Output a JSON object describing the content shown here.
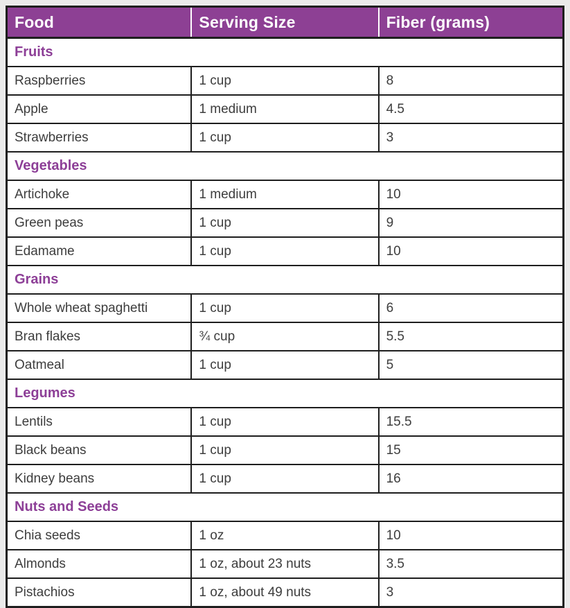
{
  "colors": {
    "page_bg": "#eaeaea",
    "table_bg": "#ffffff",
    "border": "#1e1e1e",
    "header_bg": "#8d4094",
    "header_text": "#ffffff",
    "category_text": "#8d3f97",
    "body_text": "#3d3d3d"
  },
  "table": {
    "columns": [
      "Food",
      "Serving Size",
      "Fiber (grams)"
    ],
    "sections": [
      {
        "category": "Fruits",
        "rows": [
          [
            "Raspberries",
            "1 cup",
            "8"
          ],
          [
            "Apple",
            "1 medium",
            "4.5"
          ],
          [
            "Strawberries",
            "1 cup",
            "3"
          ]
        ]
      },
      {
        "category": "Vegetables",
        "rows": [
          [
            "Artichoke",
            "1 medium",
            "10"
          ],
          [
            "Green peas",
            "1 cup",
            "9"
          ],
          [
            "Edamame",
            "1 cup",
            "10"
          ]
        ]
      },
      {
        "category": "Grains",
        "rows": [
          [
            "Whole wheat spaghetti",
            "1 cup",
            "6"
          ],
          [
            "Bran flakes",
            "¾ cup",
            "5.5"
          ],
          [
            "Oatmeal",
            "1 cup",
            "5"
          ]
        ]
      },
      {
        "category": "Legumes",
        "rows": [
          [
            "Lentils",
            "1 cup",
            "15.5"
          ],
          [
            "Black beans",
            "1 cup",
            "15"
          ],
          [
            "Kidney beans",
            "1 cup",
            "16"
          ]
        ]
      },
      {
        "category": "Nuts and Seeds",
        "rows": [
          [
            "Chia seeds",
            "1 oz",
            "10"
          ],
          [
            "Almonds",
            "1 oz, about 23 nuts",
            "3.5"
          ],
          [
            "Pistachios",
            "1 oz, about 49 nuts",
            "3"
          ]
        ]
      }
    ]
  }
}
